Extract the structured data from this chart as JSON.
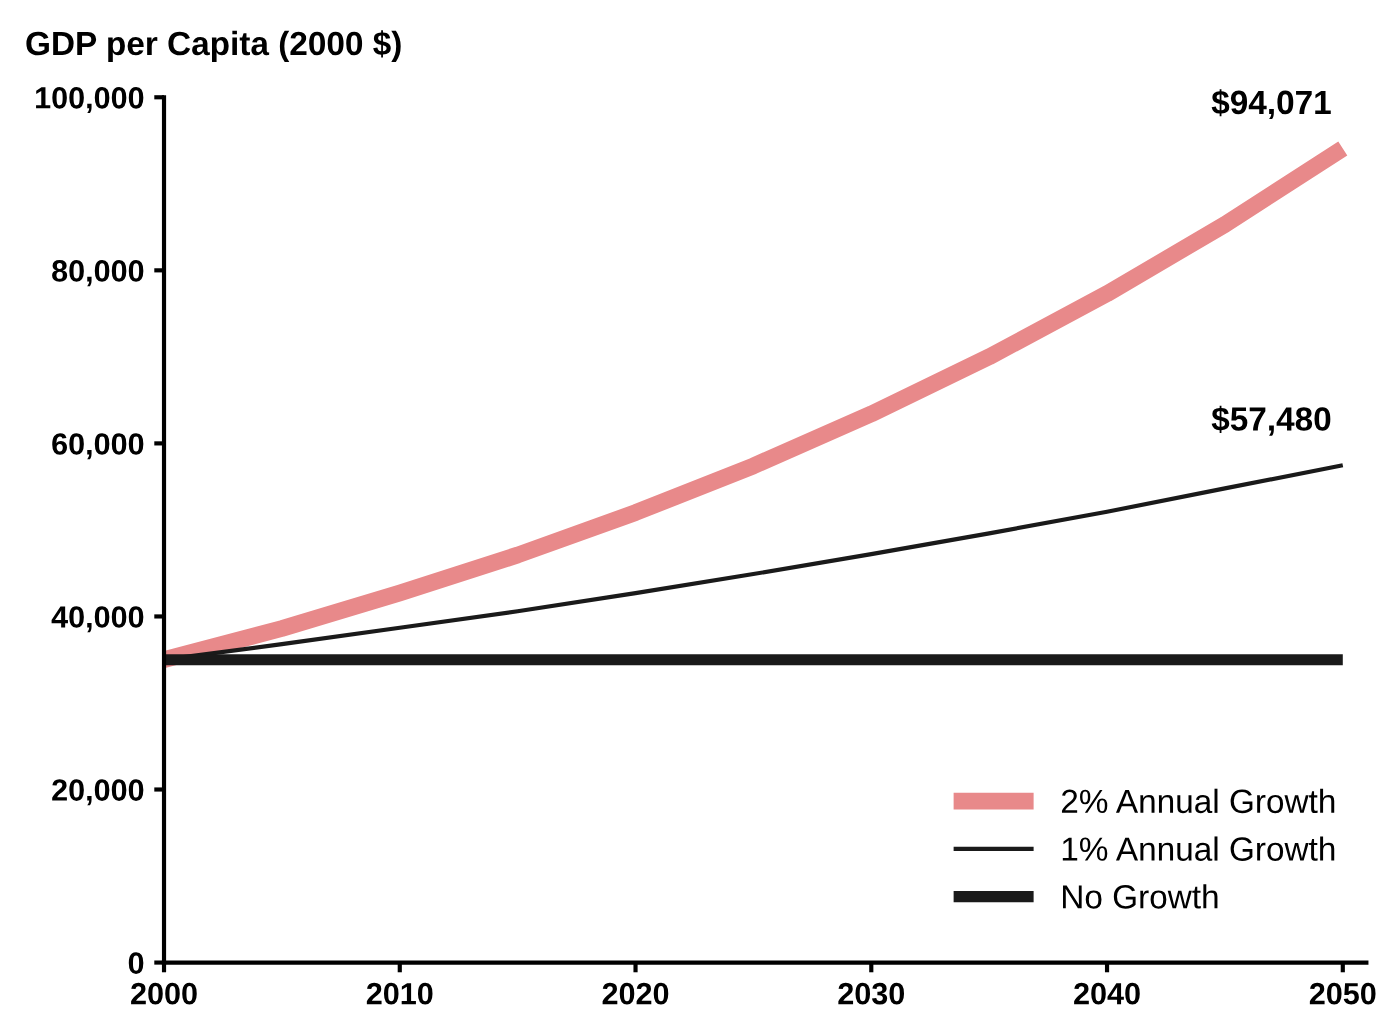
{
  "chart_data": {
    "type": "line",
    "title": "GDP per Capita (2000 $)",
    "x": [
      2000,
      2005,
      2010,
      2015,
      2020,
      2025,
      2030,
      2035,
      2040,
      2045,
      2050
    ],
    "series": [
      {
        "name": "2% Annual Growth",
        "color": "#e8898a",
        "values": [
          35000,
          38600,
          42700,
          47100,
          52000,
          57400,
          63400,
          70000,
          77300,
          85300,
          94071
        ]
      },
      {
        "name": "1% Annual Growth",
        "color": "#1a1a1a",
        "values": [
          35000,
          36800,
          38700,
          40600,
          42700,
          44900,
          47200,
          49600,
          52100,
          54800,
          57480
        ]
      },
      {
        "name": "No Growth",
        "color": "#1a1a1a",
        "values": [
          35000,
          35000,
          35000,
          35000,
          35000,
          35000,
          35000,
          35000,
          35000,
          35000,
          35000
        ]
      }
    ],
    "annotations": [
      {
        "text": "$94,071",
        "x": 2050,
        "y": 94071
      },
      {
        "text": "$57,480",
        "x": 2050,
        "y": 57480
      }
    ],
    "xlim": [
      2000,
      2051
    ],
    "xticks": [
      2000,
      2010,
      2020,
      2030,
      2040,
      2050
    ],
    "ylim": [
      0,
      100000
    ],
    "yticks": [
      {
        "value": 0,
        "label": "0"
      },
      {
        "value": 20000,
        "label": "20,000"
      },
      {
        "value": 40000,
        "label": "40,000"
      },
      {
        "value": 60000,
        "label": "60,000"
      },
      {
        "value": 80000,
        "label": "80,000"
      },
      {
        "value": 100000,
        "label": "100,000"
      }
    ],
    "grid": false,
    "legend": "bottom right",
    "marker": "none",
    "line_style": "solid"
  }
}
